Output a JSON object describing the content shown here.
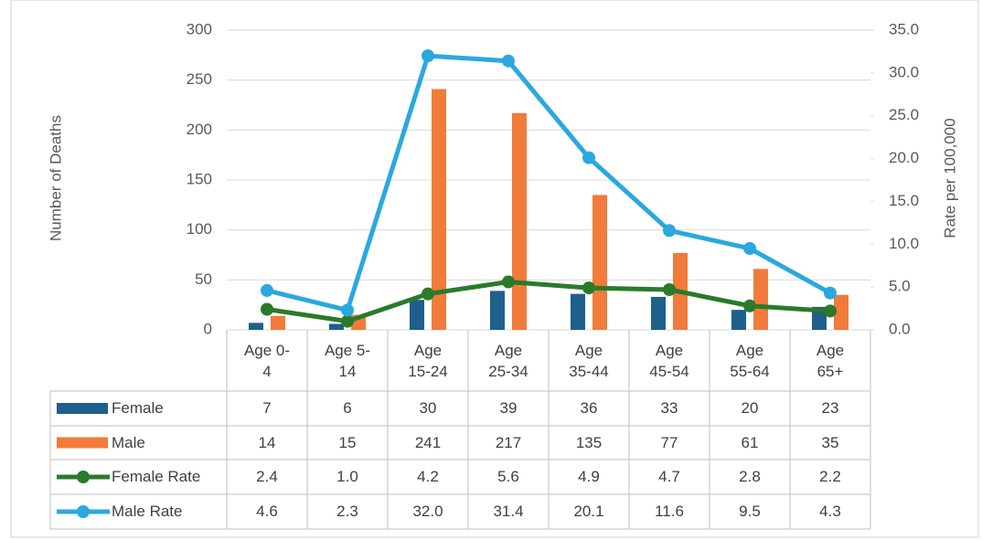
{
  "chart_data": {
    "type": "bar_line_table",
    "categories": [
      "Age 0-4",
      "Age 5-14",
      "Age 15-24",
      "Age 25-34",
      "Age 35-44",
      "Age 45-54",
      "Age 55-64",
      "Age 65+"
    ],
    "y_label": "Number of Deaths",
    "y2_label": "Rate per 100,000",
    "ylim": [
      0,
      300
    ],
    "yticks": [
      0,
      50,
      100,
      150,
      200,
      250,
      300
    ],
    "y2lim": [
      0,
      35
    ],
    "y2ticks": [
      {
        "value": 0,
        "label": "0.0"
      },
      {
        "value": 5,
        "label": "5.0"
      },
      {
        "value": 10,
        "label": "10.0"
      },
      {
        "value": 15,
        "label": "15.0"
      },
      {
        "value": 20,
        "label": "20.0"
      },
      {
        "value": 25,
        "label": "25.0"
      },
      {
        "value": 30,
        "label": "30.0"
      },
      {
        "value": 35,
        "label": "35.0"
      }
    ],
    "series": [
      {
        "name": "Female",
        "kind": "bar",
        "color": "#1f5f8b",
        "values": [
          7,
          6,
          30,
          39,
          36,
          33,
          20,
          23
        ]
      },
      {
        "name": "Male",
        "kind": "bar",
        "color": "#f07b3a",
        "values": [
          14,
          15,
          241,
          217,
          135,
          77,
          61,
          35
        ]
      },
      {
        "name": "Female Rate",
        "kind": "line",
        "axis": "y2",
        "color": "#2a7a2a",
        "values": [
          2.4,
          1.0,
          4.2,
          5.6,
          4.9,
          4.7,
          2.8,
          2.2
        ],
        "value_labels": [
          "2.4",
          "1.0",
          "4.2",
          "5.6",
          "4.9",
          "4.7",
          "2.8",
          "2.2"
        ]
      },
      {
        "name": "Male Rate",
        "kind": "line",
        "axis": "y2",
        "color": "#2aa8df",
        "values": [
          4.6,
          2.3,
          32.0,
          31.4,
          20.1,
          11.6,
          9.5,
          4.3
        ],
        "value_labels": [
          "4.6",
          "2.3",
          "32.0",
          "31.4",
          "20.1",
          "11.6",
          "9.5",
          "4.3"
        ]
      }
    ]
  }
}
